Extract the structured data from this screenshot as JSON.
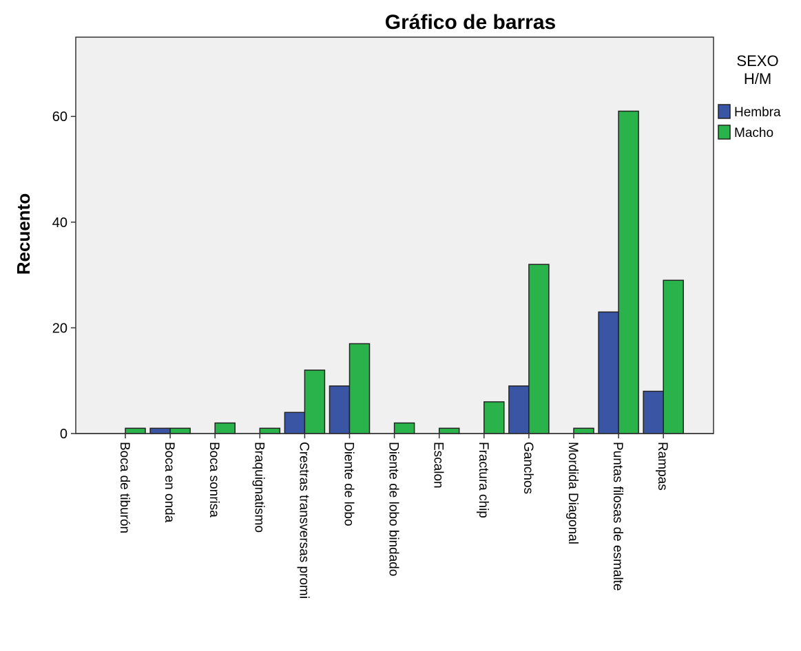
{
  "chart_data": {
    "type": "bar",
    "title": "Gráfico de barras",
    "ylabel": "Recuento",
    "xlabel": "",
    "ylim": [
      0,
      75
    ],
    "yticks": [
      0,
      20,
      40,
      60
    ],
    "grid": false,
    "legend_position": "right",
    "legend_title": [
      "SEXO",
      "H/M"
    ],
    "categories": [
      "Boca de tiburón",
      "Boca en onda",
      "Boca sonrisa",
      "Braquignatismo",
      "Crestras transversas promi",
      "Diente de lobo",
      "Diente de lobo bindado",
      "Escalon",
      "Fractura chip",
      "Ganchos",
      "Mordida Diagonal",
      "Puntas filosas de esmalte",
      "Rampas"
    ],
    "series": [
      {
        "name": "Hembra",
        "color": "#3a55a4",
        "values": [
          0,
          1,
          0,
          0,
          4,
          9,
          0,
          0,
          0,
          9,
          0,
          23,
          8
        ]
      },
      {
        "name": "Macho",
        "color": "#2ab34a",
        "values": [
          1,
          1,
          2,
          1,
          12,
          17,
          2,
          1,
          6,
          32,
          1,
          61,
          29
        ]
      }
    ]
  }
}
